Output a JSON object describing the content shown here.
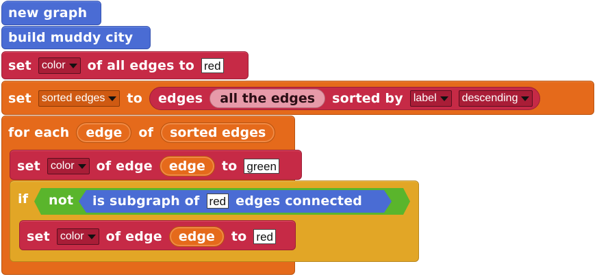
{
  "blocks": {
    "new_graph": "new graph",
    "build_city": "build muddy city",
    "set1": {
      "set": "set",
      "attr": "color",
      "mid": "of all edges to",
      "value": "red"
    },
    "set2": {
      "set": "set",
      "var": "sorted edges",
      "to": "to",
      "edges": "edges",
      "all_edges": "all the edges",
      "sorted_by": "sorted by",
      "key": "label",
      "order": "descending"
    },
    "for_each": {
      "label": "for each",
      "var": "edge",
      "of": "of",
      "list": "sorted edges"
    },
    "set3": {
      "set": "set",
      "attr": "color",
      "mid": "of edge",
      "var": "edge",
      "to": "to",
      "value": "green"
    },
    "if_block": {
      "if": "if",
      "not": "not",
      "pred1": "is subgraph of",
      "value": "red",
      "pred2": "edges connected"
    },
    "set4": {
      "set": "set",
      "attr": "color",
      "mid": "of edge",
      "var": "edge",
      "to": "to",
      "value": "red"
    }
  }
}
